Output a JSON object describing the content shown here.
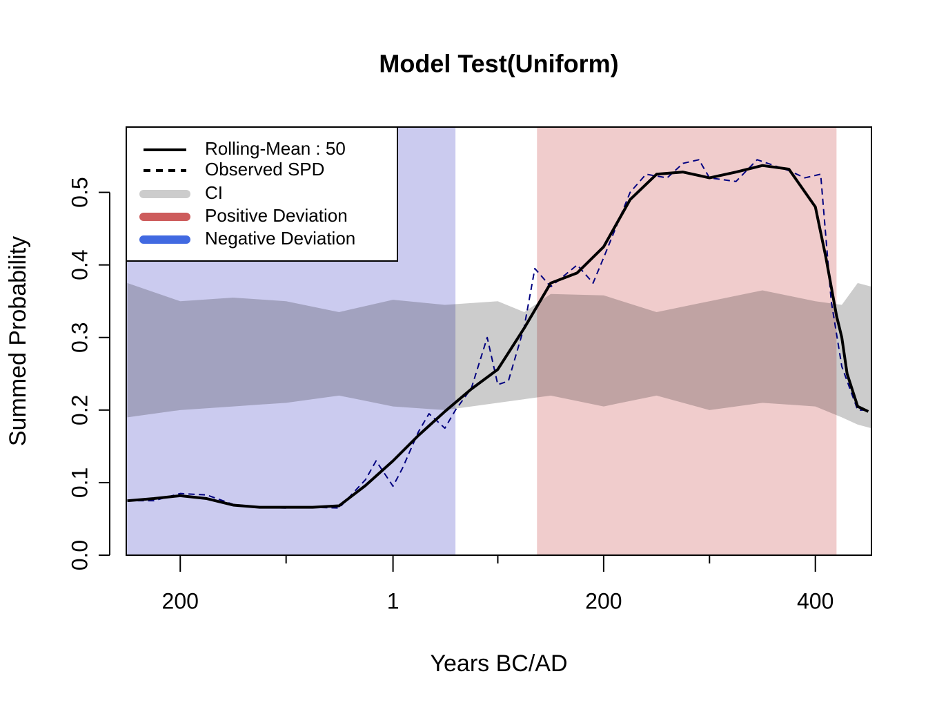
{
  "chart_data": {
    "type": "line",
    "title": "Model Test(Uniform)",
    "x_label": "Years BC/AD",
    "y_label": "Summed Probability",
    "xlim": [
      -251,
      453
    ],
    "ylim": [
      0,
      0.59
    ],
    "xticks": [
      {
        "value": -200,
        "label": "200"
      },
      1,
      200,
      {
        "value": 400,
        "label": "400"
      }
    ],
    "xminorticks": [
      -100,
      100,
      300
    ],
    "yticks": [
      {
        "value": 0,
        "label": "0.0"
      },
      0.1,
      0.2,
      0.3,
      0.4,
      0.5
    ],
    "legend": "top-left",
    "series": [
      {
        "name": "Rolling-Mean : 50",
        "style": "line",
        "color": "#000000",
        "x": [
          -250,
          -225,
          -200,
          -175,
          -150,
          -125,
          -100,
          -75,
          -50,
          -25,
          1,
          25,
          50,
          75,
          100,
          125,
          150,
          175,
          200,
          225,
          250,
          275,
          300,
          325,
          350,
          375,
          400,
          410,
          420,
          425,
          430,
          440,
          450
        ],
        "values": [
          0.075,
          0.078,
          0.082,
          0.078,
          0.069,
          0.066,
          0.066,
          0.066,
          0.068,
          0.096,
          0.13,
          0.165,
          0.198,
          0.229,
          0.256,
          0.313,
          0.375,
          0.389,
          0.425,
          0.49,
          0.525,
          0.528,
          0.52,
          0.528,
          0.537,
          0.532,
          0.48,
          0.41,
          0.33,
          0.3,
          0.25,
          0.205,
          0.198
        ]
      },
      {
        "name": "Observed SPD",
        "style": "dashed",
        "color": "#000080",
        "legend_color": "#000000",
        "x": [
          -250,
          -225,
          -200,
          -175,
          -150,
          -125,
          -100,
          -75,
          -50,
          -25,
          -15,
          1,
          10,
          25,
          35,
          50,
          60,
          75,
          90,
          100,
          110,
          125,
          135,
          150,
          175,
          190,
          200,
          225,
          240,
          260,
          275,
          290,
          300,
          325,
          345,
          375,
          390,
          405,
          415,
          425,
          440,
          450
        ],
        "values": [
          0.075,
          0.075,
          0.085,
          0.083,
          0.07,
          0.066,
          0.065,
          0.066,
          0.065,
          0.104,
          0.13,
          0.095,
          0.12,
          0.17,
          0.195,
          0.175,
          0.2,
          0.23,
          0.3,
          0.235,
          0.24,
          0.315,
          0.395,
          0.37,
          0.4,
          0.375,
          0.41,
          0.5,
          0.525,
          0.52,
          0.54,
          0.545,
          0.52,
          0.515,
          0.545,
          0.53,
          0.52,
          0.525,
          0.35,
          0.26,
          0.2,
          0.2
        ]
      },
      {
        "name": "CI",
        "style": "band",
        "color": "#cccccc",
        "x": [
          -250,
          -200,
          -150,
          -100,
          -50,
          1,
          50,
          100,
          125,
          150,
          200,
          250,
          300,
          350,
          400,
          425,
          440,
          453
        ],
        "upper": [
          0.375,
          0.35,
          0.355,
          0.35,
          0.335,
          0.352,
          0.345,
          0.35,
          0.335,
          0.36,
          0.358,
          0.335,
          0.35,
          0.365,
          0.35,
          0.345,
          0.375,
          0.37
        ],
        "lower": [
          0.19,
          0.2,
          0.205,
          0.21,
          0.22,
          0.205,
          0.2,
          0.21,
          0.215,
          0.22,
          0.205,
          0.22,
          0.2,
          0.21,
          0.205,
          0.19,
          0.18,
          0.175
        ]
      },
      {
        "name": "Positive Deviation",
        "style": "region",
        "color": "#cd5c5c",
        "fill": "#f0cccc",
        "intervals": [
          [
            137,
            420
          ]
        ]
      },
      {
        "name": "Negative Deviation",
        "style": "region",
        "color": "#4169e1",
        "fill": "#cbcbef",
        "intervals": [
          [
            -251,
            60
          ]
        ]
      }
    ]
  }
}
